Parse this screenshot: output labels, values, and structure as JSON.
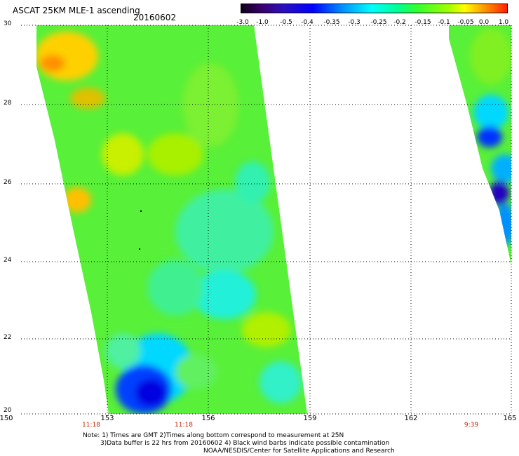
{
  "header": {
    "title": "ASCAT 25KM MLE-1 ascending",
    "date": "20160602"
  },
  "colorbar": {
    "ticks": [
      "-3.0",
      "-1.0",
      "-0.5",
      "-0.4",
      "-0.35",
      "-0.3",
      "-0.25",
      "-0.2",
      "-0.15",
      "-0.1",
      "-0.05",
      "0.0",
      "1.0"
    ],
    "colors": [
      "#10001a",
      "#3a0070",
      "#0000ff",
      "#00ffff",
      "#30ff30",
      "#ffff00",
      "#ff9000",
      "#ff2000"
    ]
  },
  "axes": {
    "lat_labels": [
      "30",
      "28",
      "26",
      "24",
      "22",
      "20"
    ],
    "lon_labels": [
      "150",
      "153",
      "156",
      "159",
      "162",
      "165"
    ],
    "lat_range": [
      20,
      30
    ],
    "lon_range": [
      150,
      165
    ],
    "gridlines": "dotted"
  },
  "times": [
    "11:18",
    "11:18",
    "9:39"
  ],
  "notes": {
    "line1": "Note: 1) Times are GMT 2)Times along bottom correspond to measurement at 25N",
    "line2": "3)Data buffer is 22 hrs from 20160602 4) Black wind barbs indicate possible contamination",
    "credit": "NOAA/NESDIS/Center for Satellite Applications and Research"
  }
}
